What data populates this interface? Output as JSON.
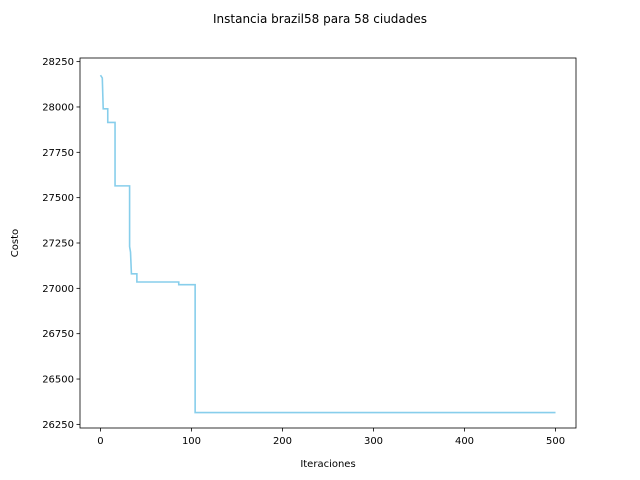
{
  "chart_data": {
    "type": "line",
    "title": "Instancia brazil58 para 58 ciudades",
    "xlabel": "Iteraciones",
    "ylabel": "Costo",
    "xlim": [
      -22.5,
      522.5
    ],
    "ylim": [
      26230,
      28270
    ],
    "xticks": [
      0,
      100,
      200,
      300,
      400,
      500
    ],
    "yticks": [
      26250,
      26500,
      26750,
      27000,
      27250,
      27500,
      27750,
      28000,
      28250
    ],
    "grid": false,
    "line_color": "#87ceeb",
    "series": [
      {
        "x": [
          0,
          2,
          3,
          8,
          8,
          16,
          16,
          32,
          32,
          33,
          34,
          34,
          40,
          40,
          86,
          86,
          104,
          104,
          500
        ],
        "y": [
          28175,
          28160,
          27990,
          27990,
          27915,
          27915,
          27565,
          27565,
          27230,
          27200,
          27080,
          27080,
          27080,
          27035,
          27035,
          27020,
          27020,
          26315,
          26315
        ]
      }
    ]
  }
}
